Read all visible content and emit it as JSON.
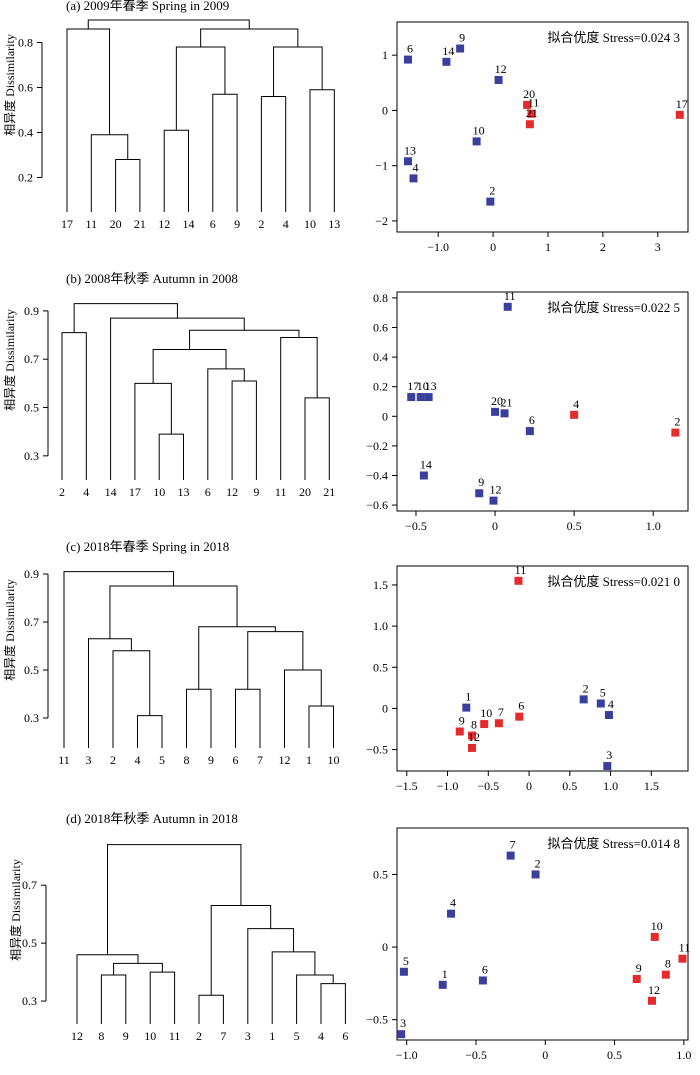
{
  "figure": {
    "colors": {
      "group_blue": "#3a3f9e",
      "group_red": "#e52b2b",
      "axis": "#000000"
    }
  },
  "chart_data": [
    {
      "id": "a",
      "type": "dendrogram",
      "title": "(a) 2009年春季 Spring in 2009",
      "ylabel": "相异度 Dissimilarity",
      "yticks": [
        0.2,
        0.4,
        0.6,
        0.8
      ],
      "ylim": [
        0.1,
        0.9
      ],
      "leaves": [
        "17",
        "11",
        "20",
        "21",
        "12",
        "14",
        "6",
        "9",
        "2",
        "4",
        "10",
        "13"
      ],
      "merges": [
        {
          "a": [
            "leaf",
            2
          ],
          "b": [
            "leaf",
            3
          ],
          "h": 0.28
        },
        {
          "a": [
            "leaf",
            1
          ],
          "b": [
            "node",
            0
          ],
          "h": 0.39
        },
        {
          "a": [
            "leaf",
            4
          ],
          "b": [
            "leaf",
            5
          ],
          "h": 0.41
        },
        {
          "a": [
            "leaf",
            6
          ],
          "b": [
            "leaf",
            7
          ],
          "h": 0.57
        },
        {
          "a": [
            "leaf",
            8
          ],
          "b": [
            "leaf",
            9
          ],
          "h": 0.56
        },
        {
          "a": [
            "leaf",
            10
          ],
          "b": [
            "leaf",
            11
          ],
          "h": 0.59
        },
        {
          "a": [
            "node",
            2
          ],
          "b": [
            "node",
            3
          ],
          "h": 0.78
        },
        {
          "a": [
            "node",
            4
          ],
          "b": [
            "node",
            5
          ],
          "h": 0.78
        },
        {
          "a": [
            "node",
            6
          ],
          "b": [
            "node",
            7
          ],
          "h": 0.86
        },
        {
          "a": [
            "leaf",
            0
          ],
          "b": [
            "node",
            1
          ],
          "h": 0.86
        },
        {
          "a": [
            "node",
            9
          ],
          "b": [
            "node",
            8
          ],
          "h": 0.9
        }
      ]
    },
    {
      "id": "a",
      "type": "scatter",
      "annotation": "拟合优度 Stress=0.024 3",
      "xticks": [
        -1.0,
        0,
        1,
        2,
        3
      ],
      "xlim": [
        -1.75,
        3.55
      ],
      "yticks": [
        -2,
        -1,
        0,
        1
      ],
      "ylim": [
        -2.2,
        1.6
      ],
      "points": [
        {
          "label": "6",
          "x": -1.55,
          "y": 0.92,
          "group": "blue"
        },
        {
          "label": "14",
          "x": -0.85,
          "y": 0.88,
          "group": "blue"
        },
        {
          "label": "9",
          "x": -0.6,
          "y": 1.12,
          "group": "blue"
        },
        {
          "label": "12",
          "x": 0.1,
          "y": 0.55,
          "group": "blue"
        },
        {
          "label": "20",
          "x": 0.62,
          "y": 0.1,
          "group": "red"
        },
        {
          "label": "11",
          "x": 0.7,
          "y": -0.06,
          "group": "red"
        },
        {
          "label": "21",
          "x": 0.67,
          "y": -0.25,
          "group": "red"
        },
        {
          "label": "17",
          "x": 3.4,
          "y": -0.08,
          "group": "red"
        },
        {
          "label": "10",
          "x": -0.3,
          "y": -0.56,
          "group": "blue"
        },
        {
          "label": "13",
          "x": -1.55,
          "y": -0.92,
          "group": "blue"
        },
        {
          "label": "4",
          "x": -1.45,
          "y": -1.23,
          "group": "blue"
        },
        {
          "label": "2",
          "x": -0.05,
          "y": -1.65,
          "group": "blue"
        }
      ]
    },
    {
      "id": "b",
      "type": "dendrogram",
      "title": "(b) 2008年秋季 Autumn in 2008",
      "ylabel": "相异度 Dissimilarity",
      "yticks": [
        0.3,
        0.5,
        0.7,
        0.9
      ],
      "ylim": [
        0.2,
        0.97
      ],
      "leaves": [
        "2",
        "4",
        "14",
        "17",
        "10",
        "13",
        "6",
        "12",
        "9",
        "11",
        "20",
        "21"
      ],
      "merges": [
        {
          "a": [
            "leaf",
            4
          ],
          "b": [
            "leaf",
            5
          ],
          "h": 0.39
        },
        {
          "a": [
            "leaf",
            3
          ],
          "b": [
            "node",
            0
          ],
          "h": 0.6
        },
        {
          "a": [
            "leaf",
            7
          ],
          "b": [
            "leaf",
            8
          ],
          "h": 0.61
        },
        {
          "a": [
            "leaf",
            6
          ],
          "b": [
            "node",
            2
          ],
          "h": 0.66
        },
        {
          "a": [
            "node",
            1
          ],
          "b": [
            "node",
            3
          ],
          "h": 0.74
        },
        {
          "a": [
            "leaf",
            10
          ],
          "b": [
            "leaf",
            11
          ],
          "h": 0.54
        },
        {
          "a": [
            "leaf",
            9
          ],
          "b": [
            "node",
            5
          ],
          "h": 0.79
        },
        {
          "a": [
            "node",
            4
          ],
          "b": [
            "node",
            6
          ],
          "h": 0.82
        },
        {
          "a": [
            "leaf",
            2
          ],
          "b": [
            "node",
            7
          ],
          "h": 0.87
        },
        {
          "a": [
            "leaf",
            0
          ],
          "b": [
            "leaf",
            1
          ],
          "h": 0.81
        },
        {
          "a": [
            "node",
            9
          ],
          "b": [
            "node",
            8
          ],
          "h": 0.93
        }
      ]
    },
    {
      "id": "b",
      "type": "scatter",
      "annotation": "拟合优度 Stress=0.022 5",
      "xticks": [
        -0.5,
        0,
        0.5,
        1.0
      ],
      "xlim": [
        -0.62,
        1.22
      ],
      "yticks": [
        -0.6,
        -0.4,
        -0.2,
        0,
        0.2,
        0.4,
        0.6,
        0.8
      ],
      "ylim": [
        -0.64,
        0.84
      ],
      "points": [
        {
          "label": "11",
          "x": 0.08,
          "y": 0.74,
          "group": "blue"
        },
        {
          "label": "17",
          "x": -0.53,
          "y": 0.13,
          "group": "blue"
        },
        {
          "label": "10",
          "x": -0.47,
          "y": 0.13,
          "group": "blue"
        },
        {
          "label": "13",
          "x": -0.42,
          "y": 0.13,
          "group": "blue"
        },
        {
          "label": "20",
          "x": 0.0,
          "y": 0.03,
          "group": "blue"
        },
        {
          "label": "21",
          "x": 0.06,
          "y": 0.02,
          "group": "blue"
        },
        {
          "label": "6",
          "x": 0.22,
          "y": -0.1,
          "group": "blue"
        },
        {
          "label": "4",
          "x": 0.5,
          "y": 0.01,
          "group": "red"
        },
        {
          "label": "2",
          "x": 1.14,
          "y": -0.11,
          "group": "red"
        },
        {
          "label": "14",
          "x": -0.45,
          "y": -0.4,
          "group": "blue"
        },
        {
          "label": "9",
          "x": -0.1,
          "y": -0.52,
          "group": "blue"
        },
        {
          "label": "12",
          "x": -0.01,
          "y": -0.57,
          "group": "blue"
        }
      ]
    },
    {
      "id": "c",
      "type": "dendrogram",
      "title": "(c) 2018年春季 Spring in 2018",
      "ylabel": "相异度 Dissimilarity",
      "yticks": [
        0.3,
        0.5,
        0.7,
        0.9
      ],
      "ylim": [
        0.2,
        0.95
      ],
      "leaves": [
        "11",
        "3",
        "2",
        "4",
        "5",
        "8",
        "9",
        "6",
        "7",
        "12",
        "1",
        "10"
      ],
      "merges": [
        {
          "a": [
            "leaf",
            3
          ],
          "b": [
            "leaf",
            4
          ],
          "h": 0.31
        },
        {
          "a": [
            "leaf",
            2
          ],
          "b": [
            "node",
            0
          ],
          "h": 0.58
        },
        {
          "a": [
            "leaf",
            1
          ],
          "b": [
            "node",
            1
          ],
          "h": 0.63
        },
        {
          "a": [
            "leaf",
            5
          ],
          "b": [
            "leaf",
            6
          ],
          "h": 0.42
        },
        {
          "a": [
            "leaf",
            7
          ],
          "b": [
            "leaf",
            8
          ],
          "h": 0.42
        },
        {
          "a": [
            "leaf",
            10
          ],
          "b": [
            "leaf",
            11
          ],
          "h": 0.35
        },
        {
          "a": [
            "leaf",
            9
          ],
          "b": [
            "node",
            5
          ],
          "h": 0.5
        },
        {
          "a": [
            "node",
            4
          ],
          "b": [
            "node",
            6
          ],
          "h": 0.66
        },
        {
          "a": [
            "node",
            3
          ],
          "b": [
            "node",
            7
          ],
          "h": 0.68
        },
        {
          "a": [
            "node",
            2
          ],
          "b": [
            "node",
            8
          ],
          "h": 0.85
        },
        {
          "a": [
            "leaf",
            0
          ],
          "b": [
            "node",
            9
          ],
          "h": 0.91
        }
      ]
    },
    {
      "id": "c",
      "type": "scatter",
      "annotation": "拟合优度 Stress=0.021 0",
      "xticks": [
        -1.5,
        -1.0,
        -0.5,
        0,
        0.5,
        1.0,
        1.5
      ],
      "xlim": [
        -1.62,
        1.95
      ],
      "yticks": [
        -0.5,
        0,
        0.5,
        1.0,
        1.5
      ],
      "ylim": [
        -0.76,
        1.73
      ],
      "points": [
        {
          "label": "11",
          "x": -0.13,
          "y": 1.55,
          "group": "red"
        },
        {
          "label": "1",
          "x": -0.77,
          "y": 0.01,
          "group": "blue"
        },
        {
          "label": "10",
          "x": -0.55,
          "y": -0.19,
          "group": "red"
        },
        {
          "label": "7",
          "x": -0.37,
          "y": -0.18,
          "group": "red"
        },
        {
          "label": "6",
          "x": -0.12,
          "y": -0.1,
          "group": "red"
        },
        {
          "label": "9",
          "x": -0.85,
          "y": -0.28,
          "group": "red"
        },
        {
          "label": "8",
          "x": -0.7,
          "y": -0.33,
          "group": "red"
        },
        {
          "label": "12",
          "x": -0.7,
          "y": -0.48,
          "group": "red"
        },
        {
          "label": "2",
          "x": 0.67,
          "y": 0.11,
          "group": "blue"
        },
        {
          "label": "5",
          "x": 0.88,
          "y": 0.06,
          "group": "blue"
        },
        {
          "label": "4",
          "x": 0.98,
          "y": -0.08,
          "group": "blue"
        },
        {
          "label": "3",
          "x": 0.96,
          "y": -0.7,
          "group": "blue"
        }
      ]
    },
    {
      "id": "d",
      "type": "dendrogram",
      "title": "(d) 2018年秋季 Autumn in 2018",
      "ylabel": "相异度 Dissimilarity",
      "yticks": [
        0.3,
        0.5,
        0.7
      ],
      "ylim": [
        0.2,
        0.87
      ],
      "leaves": [
        "12",
        "8",
        "9",
        "10",
        "11",
        "2",
        "7",
        "3",
        "1",
        "5",
        "4",
        "6"
      ],
      "merges": [
        {
          "a": [
            "leaf",
            1
          ],
          "b": [
            "leaf",
            2
          ],
          "h": 0.39
        },
        {
          "a": [
            "leaf",
            3
          ],
          "b": [
            "leaf",
            4
          ],
          "h": 0.4
        },
        {
          "a": [
            "node",
            0
          ],
          "b": [
            "node",
            1
          ],
          "h": 0.43
        },
        {
          "a": [
            "leaf",
            0
          ],
          "b": [
            "node",
            2
          ],
          "h": 0.46
        },
        {
          "a": [
            "leaf",
            10
          ],
          "b": [
            "leaf",
            11
          ],
          "h": 0.36
        },
        {
          "a": [
            "leaf",
            9
          ],
          "b": [
            "node",
            4
          ],
          "h": 0.39
        },
        {
          "a": [
            "leaf",
            8
          ],
          "b": [
            "node",
            5
          ],
          "h": 0.47
        },
        {
          "a": [
            "leaf",
            7
          ],
          "b": [
            "node",
            6
          ],
          "h": 0.55
        },
        {
          "a": [
            "leaf",
            5
          ],
          "b": [
            "leaf",
            6
          ],
          "h": 0.32
        },
        {
          "a": [
            "node",
            8
          ],
          "b": [
            "node",
            7
          ],
          "h": 0.63
        },
        {
          "a": [
            "node",
            3
          ],
          "b": [
            "node",
            9
          ],
          "h": 0.84
        }
      ]
    },
    {
      "id": "d",
      "type": "scatter",
      "annotation": "拟合优度 Stress=0.014 8",
      "xticks": [
        -1.0,
        -0.5,
        0,
        0.5,
        1.0
      ],
      "xlim": [
        -1.07,
        1.03
      ],
      "yticks": [
        -0.5,
        0,
        0.5
      ],
      "ylim": [
        -0.64,
        0.82
      ],
      "points": [
        {
          "label": "7",
          "x": -0.25,
          "y": 0.63,
          "group": "blue"
        },
        {
          "label": "2",
          "x": -0.07,
          "y": 0.5,
          "group": "blue"
        },
        {
          "label": "4",
          "x": -0.68,
          "y": 0.23,
          "group": "blue"
        },
        {
          "label": "5",
          "x": -1.02,
          "y": -0.17,
          "group": "blue"
        },
        {
          "label": "1",
          "x": -0.74,
          "y": -0.26,
          "group": "blue"
        },
        {
          "label": "6",
          "x": -0.45,
          "y": -0.23,
          "group": "blue"
        },
        {
          "label": "3",
          "x": -1.04,
          "y": -0.6,
          "group": "blue"
        },
        {
          "label": "10",
          "x": 0.79,
          "y": 0.07,
          "group": "red"
        },
        {
          "label": "11",
          "x": 0.99,
          "y": -0.08,
          "group": "red"
        },
        {
          "label": "8",
          "x": 0.87,
          "y": -0.19,
          "group": "red"
        },
        {
          "label": "9",
          "x": 0.66,
          "y": -0.22,
          "group": "red"
        },
        {
          "label": "12",
          "x": 0.77,
          "y": -0.37,
          "group": "red"
        }
      ]
    }
  ]
}
